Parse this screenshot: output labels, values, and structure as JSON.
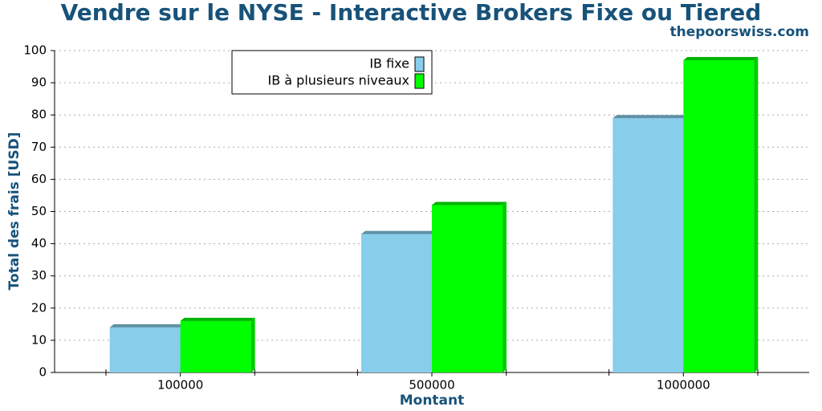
{
  "chart_data": {
    "type": "bar3d",
    "title": "Vendre sur le NYSE - Interactive Brokers Fixe ou Tiered",
    "subtitle": "thepoorswiss.com",
    "x_label": "Montant",
    "y_label": "Total des frais [USD]",
    "categories": [
      "100000",
      "500000",
      "1000000"
    ],
    "series": [
      {
        "name": "IB fixe",
        "color": "#87ceeb",
        "values": [
          14,
          43,
          79
        ]
      },
      {
        "name": "IB à plusieurs niveaux",
        "color": "#00ff00",
        "values": [
          16,
          52,
          97
        ]
      }
    ],
    "ylim": [
      0,
      100
    ],
    "yticks": [
      0,
      10,
      20,
      30,
      40,
      50,
      60,
      70,
      80,
      90,
      100
    ],
    "grid": true,
    "legend": "top-center"
  }
}
